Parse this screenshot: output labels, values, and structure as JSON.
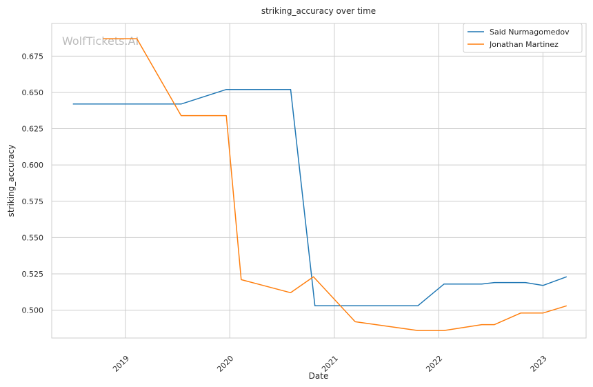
{
  "chart_data": {
    "type": "line",
    "title": "striking_accuracy over time",
    "xlabel": "Date",
    "ylabel": "striking_accuracy",
    "watermark": "WolfTickets.AI",
    "xlim": [
      "2018-04-18",
      "2023-06-01"
    ],
    "ylim": [
      0.4808,
      0.6975
    ],
    "x_ticks": [
      {
        "date": "2019-01-01",
        "label": "2019"
      },
      {
        "date": "2020-01-01",
        "label": "2020"
      },
      {
        "date": "2021-01-01",
        "label": "2021"
      },
      {
        "date": "2022-01-01",
        "label": "2022"
      },
      {
        "date": "2023-01-01",
        "label": "2023"
      }
    ],
    "y_ticks": [
      {
        "value": 0.5,
        "label": "0.500"
      },
      {
        "value": 0.525,
        "label": "0.525"
      },
      {
        "value": 0.55,
        "label": "0.550"
      },
      {
        "value": 0.575,
        "label": "0.575"
      },
      {
        "value": 0.6,
        "label": "0.600"
      },
      {
        "value": 0.625,
        "label": "0.625"
      },
      {
        "value": 0.65,
        "label": "0.650"
      },
      {
        "value": 0.675,
        "label": "0.675"
      }
    ],
    "grid": true,
    "legend_position": "top-right",
    "series": [
      {
        "name": "Said Nurmagomedov",
        "color": "#1f77b4",
        "points": [
          {
            "x": "2018-07-01",
            "y": 0.642
          },
          {
            "x": "2019-07-15",
            "y": 0.642
          },
          {
            "x": "2019-12-20",
            "y": 0.652
          },
          {
            "x": "2020-08-01",
            "y": 0.652
          },
          {
            "x": "2020-10-25",
            "y": 0.503
          },
          {
            "x": "2021-10-20",
            "y": 0.503
          },
          {
            "x": "2022-01-20",
            "y": 0.518
          },
          {
            "x": "2022-06-01",
            "y": 0.518
          },
          {
            "x": "2022-07-15",
            "y": 0.519
          },
          {
            "x": "2022-11-01",
            "y": 0.519
          },
          {
            "x": "2023-01-01",
            "y": 0.517
          },
          {
            "x": "2023-03-25",
            "y": 0.523
          }
        ]
      },
      {
        "name": "Jonathan Martinez",
        "color": "#ff7f0e",
        "points": [
          {
            "x": "2018-10-15",
            "y": 0.687
          },
          {
            "x": "2019-02-10",
            "y": 0.687
          },
          {
            "x": "2019-07-15",
            "y": 0.634
          },
          {
            "x": "2019-12-20",
            "y": 0.634
          },
          {
            "x": "2020-02-10",
            "y": 0.521
          },
          {
            "x": "2020-08-01",
            "y": 0.512
          },
          {
            "x": "2020-10-20",
            "y": 0.523
          },
          {
            "x": "2021-03-15",
            "y": 0.492
          },
          {
            "x": "2021-10-20",
            "y": 0.486
          },
          {
            "x": "2022-01-20",
            "y": 0.486
          },
          {
            "x": "2022-06-01",
            "y": 0.49
          },
          {
            "x": "2022-07-15",
            "y": 0.49
          },
          {
            "x": "2022-10-15",
            "y": 0.498
          },
          {
            "x": "2023-01-01",
            "y": 0.498
          },
          {
            "x": "2023-03-25",
            "y": 0.503
          }
        ]
      }
    ]
  }
}
